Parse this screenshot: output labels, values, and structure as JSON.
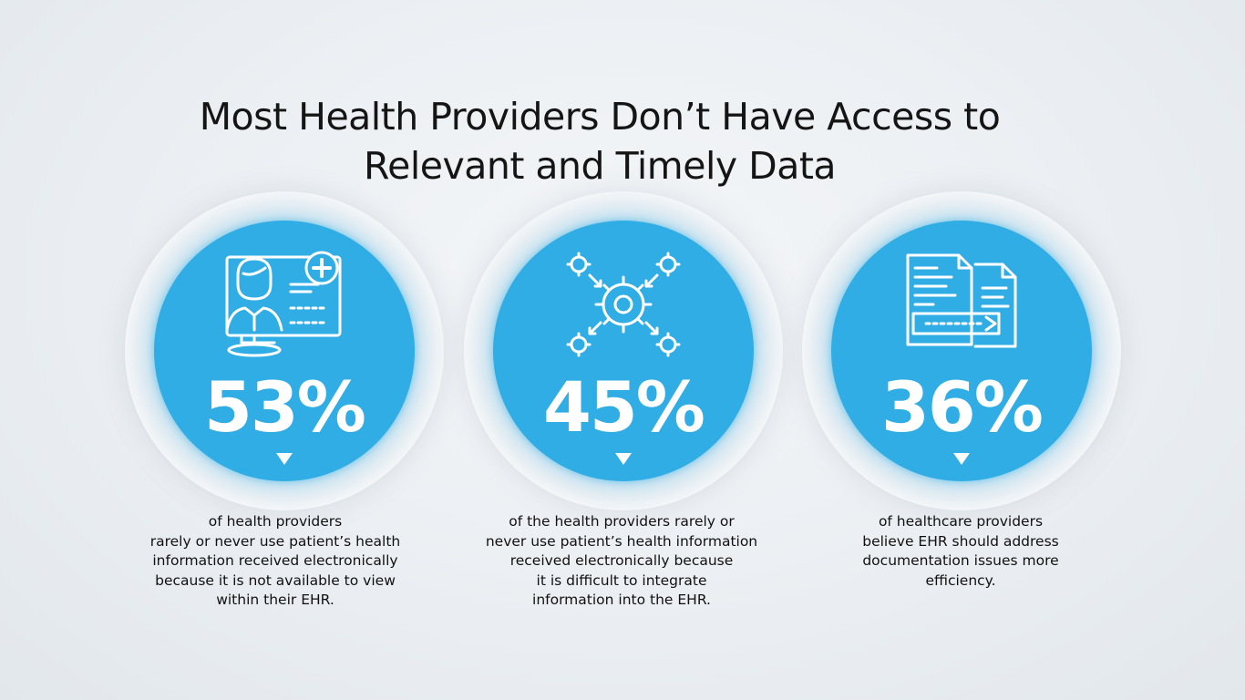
{
  "title": {
    "line1": "Most Health Providers Don’t Have Access to",
    "line2": "Relevant and Timely Data"
  },
  "stats": [
    {
      "percent": "53%",
      "icon": "doctor-monitor-icon",
      "description": [
        "of health providers",
        "rarely or never use patient’s health",
        "information received electronically",
        "because it is not available to view",
        "within their EHR."
      ]
    },
    {
      "percent": "45%",
      "icon": "gear-integration-icon",
      "description": [
        "of the health providers rarely or",
        "never use patient’s health information",
        "received electronically because",
        "it is difficult to integrate",
        "information into the EHR."
      ]
    },
    {
      "percent": "36%",
      "icon": "document-transfer-icon",
      "description": [
        "of healthcare providers",
        "believe EHR should address",
        "documentation issues more",
        "efficiency."
      ]
    }
  ],
  "colors": {
    "accent": "#30ade4",
    "background": "#eef1f4",
    "text": "#111111"
  }
}
